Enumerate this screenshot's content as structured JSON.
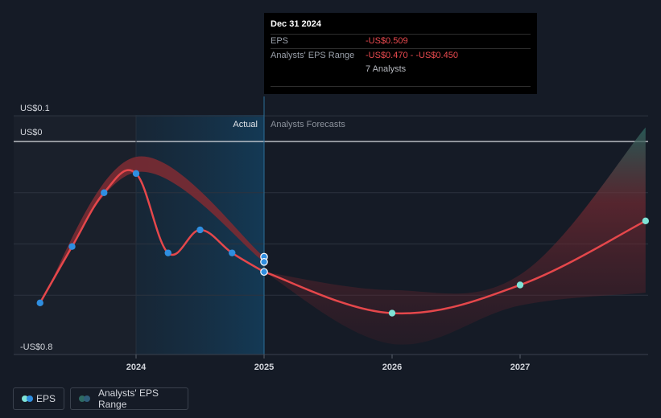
{
  "tooltip": {
    "date": "Dec 31 2024",
    "eps_label": "EPS",
    "eps_value": "-US$0.509",
    "range_label": "Analysts' EPS Range",
    "range_value": "-US$0.470 - -US$0.450",
    "analysts": "7 Analysts"
  },
  "legend": {
    "eps_label": "EPS",
    "range_label": "Analysts' EPS Range"
  },
  "colors": {
    "eps_line": "#e5474b",
    "actual_dot": "#2f8ee0",
    "forecast_dot": "#7fe3d6",
    "range_fill": "#7a2b33",
    "range_teal": "#2e6a63"
  },
  "chart_data": {
    "type": "line",
    "title": "",
    "y_axis_labels": [
      "US$0.1",
      "US$0",
      "-US$0.8"
    ],
    "ylim": [
      -0.8,
      0.1
    ],
    "x_ticks": [
      {
        "label": "2024",
        "x": 2024.0
      },
      {
        "label": "2025",
        "x": 2025.0
      },
      {
        "label": "2026",
        "x": 2026.0
      },
      {
        "label": "2027",
        "x": 2027.0
      }
    ],
    "xlim": [
      2022.8,
      2027.98
    ],
    "section_labels": {
      "actual": "Actual",
      "forecast": "Analysts Forecasts"
    },
    "actual_boundary": 2025.0,
    "highlight_range": [
      2024.0,
      2025.0
    ],
    "series": [
      {
        "name": "EPS",
        "role": "actual",
        "points": [
          {
            "x": 2023.25,
            "y": -0.63
          },
          {
            "x": 2023.5,
            "y": -0.41
          },
          {
            "x": 2023.75,
            "y": -0.2
          },
          {
            "x": 2024.0,
            "y": -0.125
          },
          {
            "x": 2024.25,
            "y": -0.435
          },
          {
            "x": 2024.5,
            "y": -0.345
          },
          {
            "x": 2024.75,
            "y": -0.435
          },
          {
            "x": 2025.0,
            "y": -0.509
          }
        ]
      },
      {
        "name": "EPS",
        "role": "forecast",
        "points": [
          {
            "x": 2025.0,
            "y": -0.509
          },
          {
            "x": 2026.0,
            "y": -0.67
          },
          {
            "x": 2027.0,
            "y": -0.56
          },
          {
            "x": 2027.98,
            "y": -0.31
          }
        ]
      },
      {
        "name": "Analysts' EPS Range",
        "role": "past-range",
        "upper": [
          {
            "x": 2023.25,
            "y": -0.63
          },
          {
            "x": 2024.0,
            "y": -0.06
          },
          {
            "x": 2025.0,
            "y": -0.45
          }
        ],
        "lower": [
          {
            "x": 2023.25,
            "y": -0.63
          },
          {
            "x": 2024.0,
            "y": -0.12
          },
          {
            "x": 2025.0,
            "y": -0.47
          }
        ]
      },
      {
        "name": "Analysts' EPS Range",
        "role": "forecast-range",
        "upper": [
          {
            "x": 2025.0,
            "y": -0.509
          },
          {
            "x": 2026.0,
            "y": -0.58
          },
          {
            "x": 2027.0,
            "y": -0.52
          },
          {
            "x": 2027.98,
            "y": 0.055
          }
        ],
        "lower": [
          {
            "x": 2025.0,
            "y": -0.509
          },
          {
            "x": 2026.0,
            "y": -0.79
          },
          {
            "x": 2027.0,
            "y": -0.64
          },
          {
            "x": 2027.98,
            "y": -0.59
          }
        ]
      }
    ],
    "extra_markers": [
      {
        "x": 2025.0,
        "y": -0.45
      },
      {
        "x": 2025.0,
        "y": -0.47
      }
    ],
    "grid": true,
    "legend_position": "bottom-left"
  }
}
